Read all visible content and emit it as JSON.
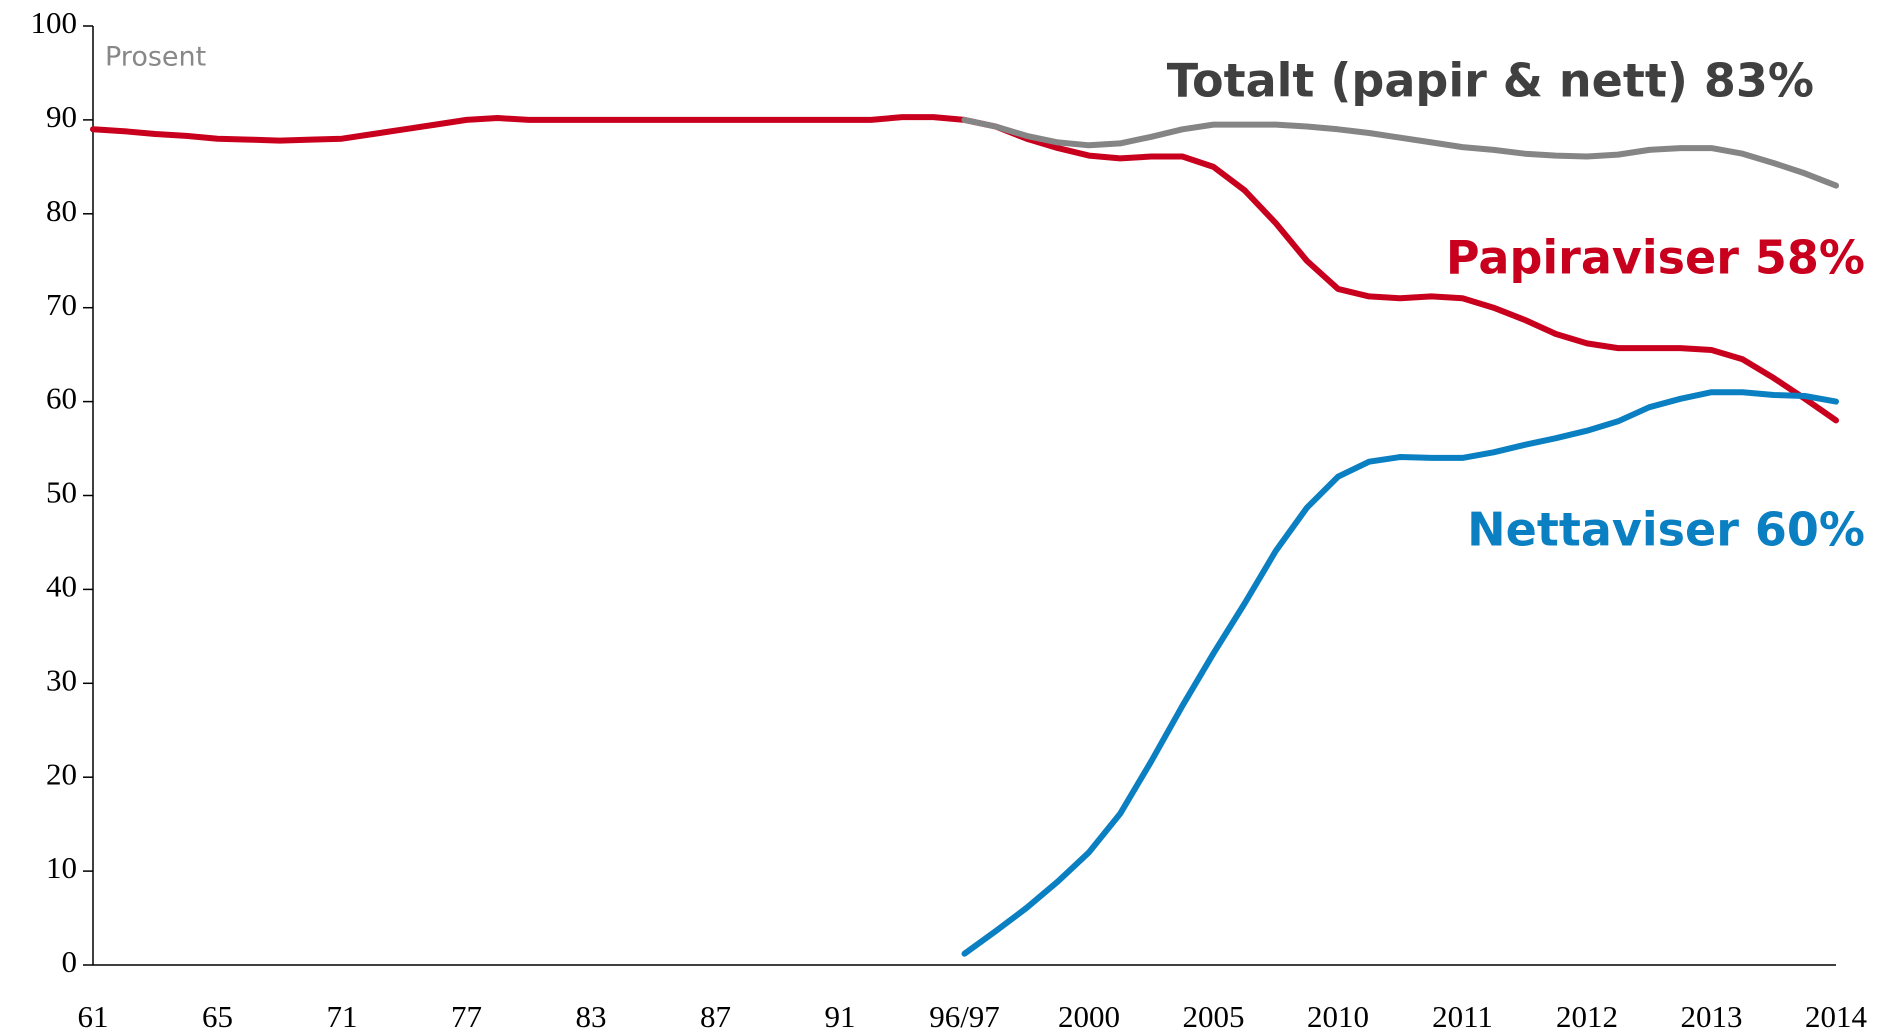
{
  "chart_data": {
    "type": "line",
    "ylabel": "Prosent",
    "categories": [
      "61",
      null,
      null,
      null,
      "65",
      null,
      null,
      null,
      "71",
      null,
      null,
      null,
      "77",
      null,
      null,
      null,
      "83",
      null,
      null,
      null,
      "87",
      null,
      null,
      null,
      "91",
      null,
      null,
      null,
      "96/97",
      null,
      null,
      null,
      "2000",
      null,
      null,
      null,
      "2005",
      null,
      null,
      null,
      "2010",
      null,
      null,
      null,
      "2011",
      null,
      null,
      null,
      "2012",
      null,
      null,
      null,
      "2013",
      null,
      null,
      null,
      "2014"
    ],
    "ylim": [
      0,
      100
    ],
    "yticks": [
      0,
      10,
      20,
      30,
      40,
      50,
      60,
      70,
      80,
      90,
      100
    ],
    "grid": false,
    "series": [
      {
        "name": "Papiraviser 58%",
        "color": "#c8001e",
        "values": [
          89,
          88.8,
          88.5,
          88.3,
          88,
          87.9,
          87.8,
          87.9,
          88,
          88.5,
          89,
          89.5,
          90,
          90.2,
          90,
          90,
          90,
          90,
          90,
          90,
          90,
          90,
          90,
          90,
          90,
          90,
          90.3,
          90.3,
          90,
          89.3,
          88,
          87,
          86.2,
          85.9,
          86.1,
          86.1,
          85,
          82.5,
          79,
          75,
          72,
          71.2,
          71,
          71.2,
          71,
          70,
          68.7,
          67.2,
          66.2,
          65.7,
          65.7,
          65.7,
          65.5,
          64.5,
          62.5,
          60.3,
          58
        ]
      },
      {
        "name": "Nettaviser 60%",
        "color": "#0a7fc1",
        "values": [
          null,
          null,
          null,
          null,
          null,
          null,
          null,
          null,
          null,
          null,
          null,
          null,
          null,
          null,
          null,
          null,
          null,
          null,
          null,
          null,
          null,
          null,
          null,
          null,
          null,
          null,
          null,
          null,
          1.2,
          3.6,
          6.1,
          8.9,
          12,
          16.1,
          21.7,
          27.6,
          33.2,
          38.5,
          44.1,
          48.7,
          52,
          53.6,
          54.1,
          54,
          54,
          54.6,
          55.4,
          56.1,
          56.9,
          57.9,
          59.4,
          60.3,
          61,
          61,
          60.7,
          60.6,
          60
        ]
      },
      {
        "name": "Totalt (papir & nett) 83%",
        "color": "#858585",
        "label_color": "#404040",
        "values": [
          null,
          null,
          null,
          null,
          null,
          null,
          null,
          null,
          null,
          null,
          null,
          null,
          null,
          null,
          null,
          null,
          null,
          null,
          null,
          null,
          null,
          null,
          null,
          null,
          null,
          null,
          null,
          null,
          90,
          89.3,
          88.3,
          87.6,
          87.3,
          87.5,
          88.2,
          89,
          89.5,
          89.5,
          89.5,
          89.3,
          89,
          88.6,
          88.1,
          87.6,
          87.1,
          86.8,
          86.4,
          86.2,
          86.1,
          86.3,
          86.8,
          87,
          87,
          86.4,
          85.4,
          84.3,
          83
        ]
      }
    ]
  }
}
